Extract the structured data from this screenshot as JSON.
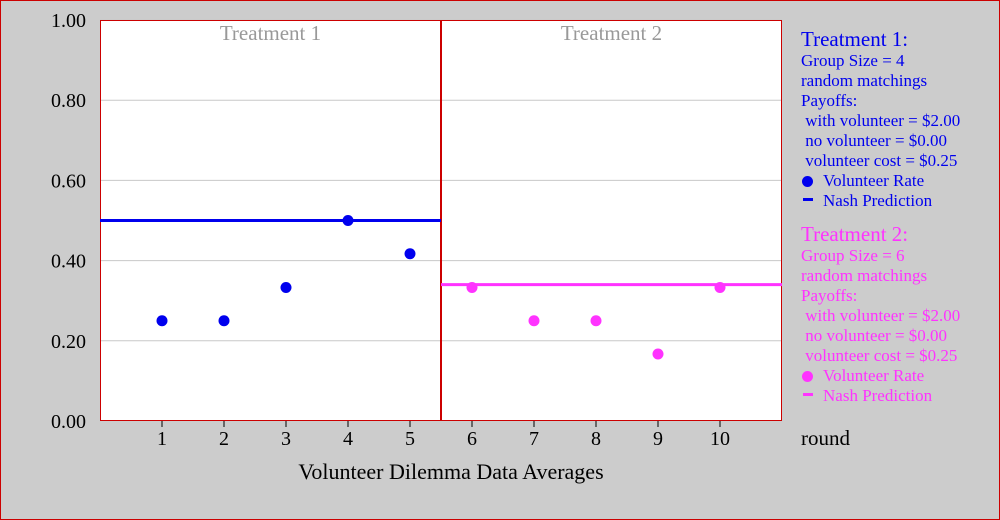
{
  "chart_data": {
    "type": "scatter",
    "xlabel": "Volunteer Dilemma Data Averages",
    "x_unit_label": "round",
    "xlim": [
      0,
      11
    ],
    "ylim": [
      0,
      1
    ],
    "x_ticks": [
      1,
      2,
      3,
      4,
      5,
      6,
      7,
      8,
      9,
      10
    ],
    "y_ticks": [
      "0.00",
      "0.20",
      "0.40",
      "0.60",
      "0.80",
      "1.00"
    ],
    "y_tick_values": [
      0,
      0.2,
      0.4,
      0.6,
      0.8,
      1.0
    ],
    "grid": true,
    "panels": [
      {
        "label": "Treatment 1",
        "x_range": [
          0,
          5.5
        ]
      },
      {
        "label": "Treatment 2",
        "x_range": [
          5.5,
          11
        ]
      }
    ],
    "series": [
      {
        "name": "Volunteer Rate",
        "treatment": 1,
        "color": "#0000ee",
        "x": [
          1,
          2,
          3,
          4,
          5
        ],
        "values": [
          0.25,
          0.25,
          0.333,
          0.5,
          0.417
        ]
      },
      {
        "name": "Volunteer Rate",
        "treatment": 2,
        "color": "#ff33ff",
        "x": [
          6,
          7,
          8,
          9,
          10
        ],
        "values": [
          0.333,
          0.25,
          0.25,
          0.167,
          0.333
        ]
      }
    ],
    "reference_lines": [
      {
        "name": "Nash Prediction",
        "treatment": 1,
        "color": "#0000ee",
        "x_range": [
          0,
          5.5
        ],
        "y": 0.5
      },
      {
        "name": "Nash Prediction",
        "treatment": 2,
        "color": "#ff33ff",
        "x_range": [
          5.5,
          11
        ],
        "y": 0.34
      }
    ]
  },
  "legend": {
    "treatment1": {
      "color": "#0000ee",
      "title": "Treatment 1:",
      "lines": [
        "Group Size = 4",
        "random matchings",
        "Payoffs:",
        " with volunteer = $2.00",
        " no volunteer = $0.00",
        " volunteer cost = $0.25"
      ],
      "rate_label": "Volunteer Rate",
      "nash_label": "Nash Prediction"
    },
    "treatment2": {
      "color": "#ff33ff",
      "title": "Treatment 2:",
      "lines": [
        "Group Size = 6",
        "random matchings",
        "Payoffs:",
        " with volunteer = $2.00",
        " no volunteer = $0.00",
        " volunteer cost = $0.25"
      ],
      "rate_label": "Volunteer Rate",
      "nash_label": "Nash Prediction"
    }
  }
}
